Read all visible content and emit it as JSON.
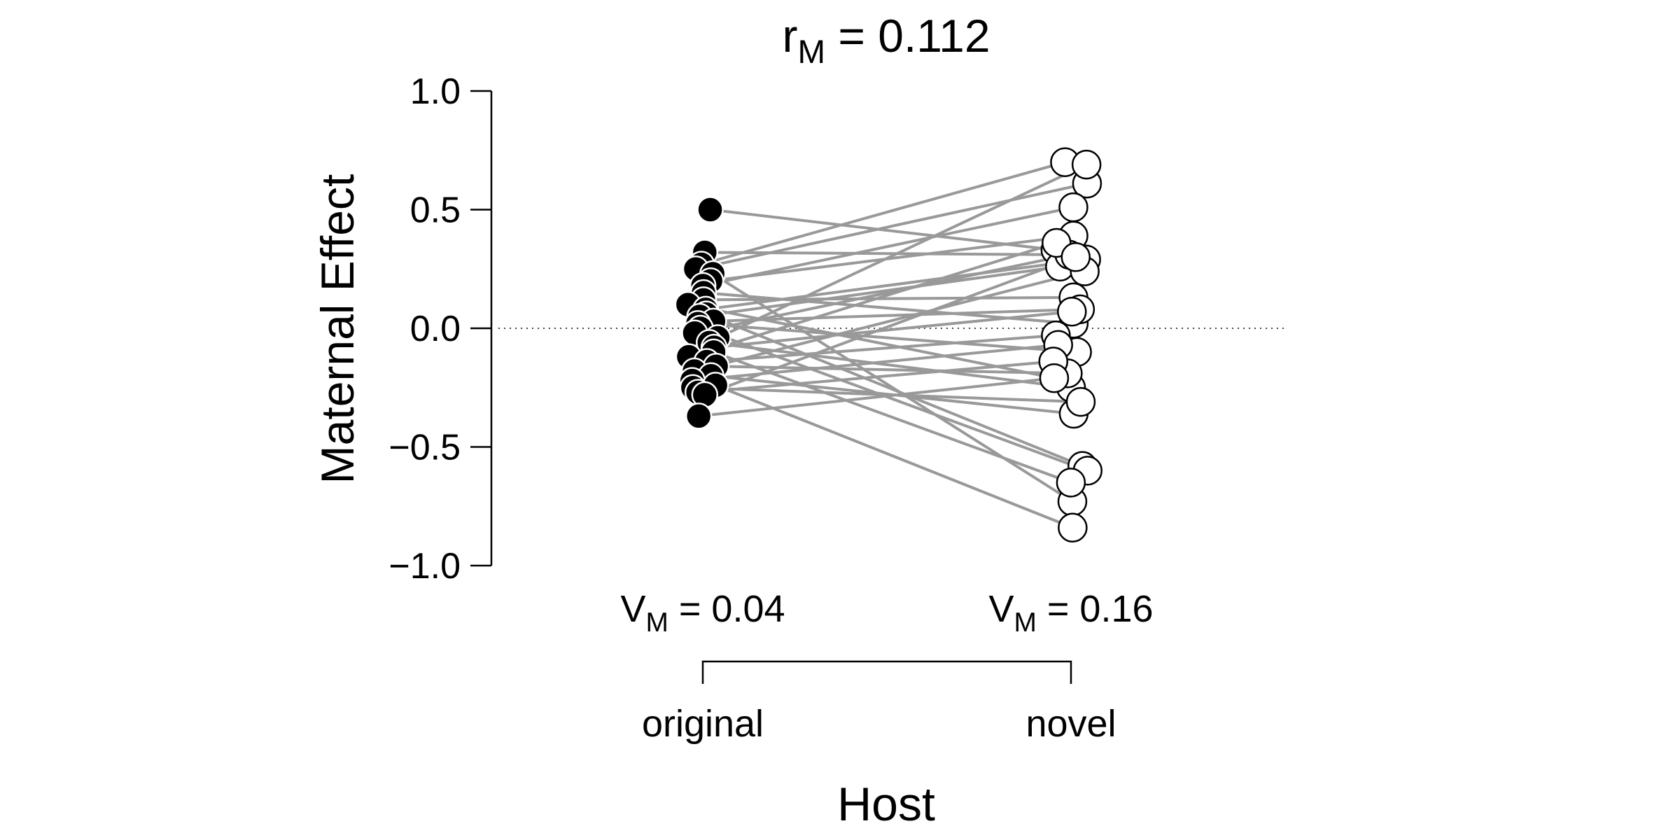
{
  "chart_data": {
    "type": "scatter",
    "title": "r = 0.112",
    "title_main": "r",
    "title_sub": "M",
    "title_rest": " = 0.112",
    "xlabel": "Host",
    "ylabel": "Maternal Effect",
    "ylim": [
      -1.0,
      1.0
    ],
    "yticks": [
      "1.0",
      "0.5",
      "0.0",
      "−0.5",
      "−1.0"
    ],
    "ytick_values": [
      1.0,
      0.5,
      0.0,
      -0.5,
      -1.0
    ],
    "categories": [
      "original",
      "novel"
    ],
    "reference_line": 0,
    "grid": false,
    "variance_labels": [
      {
        "category": "original",
        "main": "V",
        "sub": "M",
        "rest": " = 0.04"
      },
      {
        "category": "novel",
        "main": "V",
        "sub": "M",
        "rest": " = 0.16"
      }
    ],
    "colors": {
      "original_point": "#000000",
      "novel_point": "#ffffff",
      "connector": "#999999",
      "reference": "#444444"
    },
    "pairs": [
      {
        "original": 0.5,
        "novel": 0.33
      },
      {
        "original": 0.32,
        "novel": 0.31
      },
      {
        "original": 0.27,
        "novel": 0.7
      },
      {
        "original": 0.25,
        "novel": 0.61
      },
      {
        "original": 0.23,
        "novel": -0.73
      },
      {
        "original": 0.2,
        "novel": 0.39
      },
      {
        "original": 0.18,
        "novel": 0.51
      },
      {
        "original": 0.15,
        "novel": 0.02
      },
      {
        "original": 0.12,
        "novel": 0.13
      },
      {
        "original": 0.1,
        "novel": -0.22
      },
      {
        "original": 0.08,
        "novel": 0.29
      },
      {
        "original": 0.06,
        "novel": -0.58
      },
      {
        "original": 0.05,
        "novel": 0.26
      },
      {
        "original": 0.03,
        "novel": 0.08
      },
      {
        "original": 0.02,
        "novel": -0.1
      },
      {
        "original": 0.0,
        "novel": -0.6
      },
      {
        "original": -0.02,
        "novel": 0.31
      },
      {
        "original": -0.04,
        "novel": 0.69
      },
      {
        "original": -0.06,
        "novel": -0.25
      },
      {
        "original": -0.08,
        "novel": 0.07
      },
      {
        "original": -0.1,
        "novel": -0.65
      },
      {
        "original": -0.12,
        "novel": 0.36
      },
      {
        "original": -0.14,
        "novel": -0.03
      },
      {
        "original": -0.16,
        "novel": -0.19
      },
      {
        "original": -0.18,
        "novel": 0.24
      },
      {
        "original": -0.2,
        "novel": -0.36
      },
      {
        "original": -0.22,
        "novel": -0.07
      },
      {
        "original": -0.24,
        "novel": -0.84
      },
      {
        "original": -0.25,
        "novel": -0.31
      },
      {
        "original": -0.27,
        "novel": -0.14
      },
      {
        "original": -0.28,
        "novel": 0.3
      },
      {
        "original": -0.37,
        "novel": -0.21
      }
    ]
  }
}
